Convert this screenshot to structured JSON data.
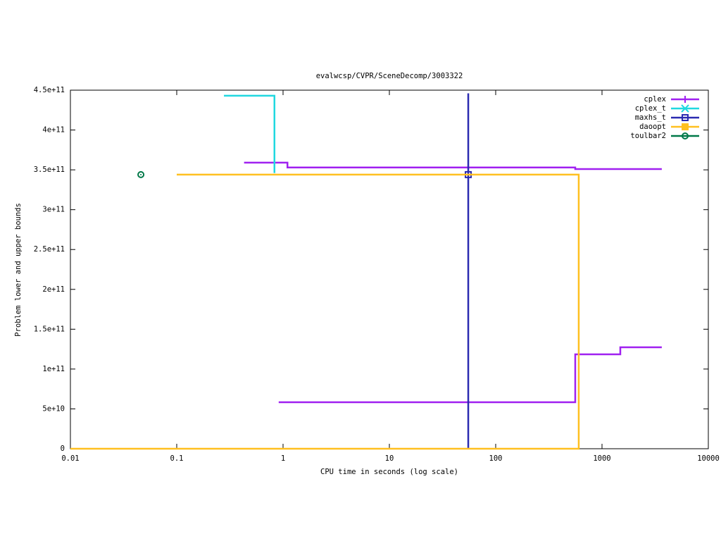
{
  "chart_data": {
    "type": "line",
    "title": "evalwcsp/CVPR/SceneDecomp/3003322",
    "x_label": "CPU time in seconds (log scale)",
    "y_label": "Problem lower and upper bounds",
    "xscale": "log",
    "xlim": [
      0.01,
      10000
    ],
    "xticks": [
      0.01,
      0.1,
      1,
      10,
      100,
      1000,
      10000
    ],
    "ylim": [
      0,
      450000000000
    ],
    "yticks": [
      0,
      {
        "value": 50000000000,
        "label": "5e+10"
      },
      {
        "value": 100000000000,
        "label": "1e+11"
      },
      {
        "value": 150000000000,
        "label": "1.5e+11"
      },
      {
        "value": 200000000000,
        "label": "2e+11"
      },
      {
        "value": 250000000000,
        "label": "2.5e+11"
      },
      {
        "value": 300000000000,
        "label": "3e+11"
      },
      {
        "value": 350000000000,
        "label": "3.5e+11"
      },
      {
        "value": 400000000000,
        "label": "4e+11"
      },
      {
        "value": 450000000000,
        "label": "4.5e+11"
      }
    ],
    "legend": "top-right",
    "series": [
      {
        "name": "cplex",
        "color": "#a020f0",
        "marker": "plus",
        "x": [
          0.43,
          1.1,
          1.1,
          560,
          560,
          3650,
          null,
          0.91,
          560,
          560,
          1486,
          1486,
          3650
        ],
        "y": [
          359000000000,
          359000000000,
          353000000000,
          353000000000,
          351000000000,
          351000000000,
          null,
          58400000000,
          58400000000,
          118500000000,
          118500000000,
          127300000000,
          127300000000
        ],
        "points": {
          "x": [],
          "y": []
        }
      },
      {
        "name": "cplex_t",
        "color": "#20d8e0",
        "marker": "cross",
        "x": [
          0.278,
          0.83,
          0.83
        ],
        "y": [
          443000000000,
          443000000000,
          346000000000
        ],
        "points": {
          "x": [],
          "y": []
        }
      },
      {
        "name": "maxhs_t",
        "color": "#2a2ab0",
        "marker": "square",
        "x": [
          55.2,
          55.2
        ],
        "y": [
          446000000000,
          0
        ],
        "points": {
          "x": [
            55.2
          ],
          "y": [
            344000000000
          ]
        }
      },
      {
        "name": "daoopt",
        "color": "#ffc020",
        "marker": "filled-square",
        "x": [
          0.1,
          604,
          604,
          0.01
        ],
        "y": [
          344000000000,
          344000000000,
          0,
          0
        ],
        "points": {
          "x": [],
          "y": []
        }
      },
      {
        "name": "toulbar2",
        "color": "#007848",
        "marker": "circle",
        "x": [],
        "y": [],
        "points": {
          "x": [
            0.046
          ],
          "y": [
            344000000000
          ]
        }
      }
    ]
  }
}
